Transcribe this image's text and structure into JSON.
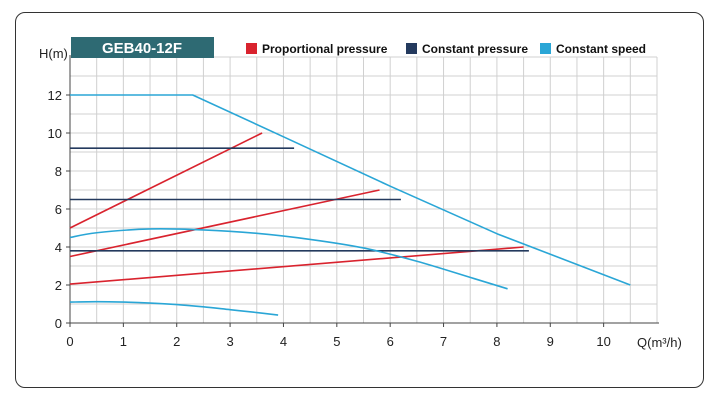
{
  "chart_data": {
    "type": "line",
    "title": "GEB40-12F",
    "xlabel": "Q(m³/h)",
    "ylabel": "H(m)",
    "xlim": [
      0,
      11
    ],
    "ylim": [
      0,
      14
    ],
    "x_ticks": [
      0,
      1,
      2,
      3,
      4,
      5,
      6,
      7,
      8,
      9,
      10
    ],
    "y_ticks": [
      0,
      2,
      4,
      6,
      8,
      10,
      12
    ],
    "grid": true,
    "legend": [
      {
        "name": "Proportional pressure",
        "color": "#d9232e"
      },
      {
        "name": "Constant pressure",
        "color": "#243a5e"
      },
      {
        "name": "Constant speed",
        "color": "#2aa6d6"
      }
    ],
    "series": [
      {
        "group": "Proportional pressure",
        "color": "#d9232e",
        "points": [
          [
            0,
            5.0
          ],
          [
            3.6,
            10.0
          ]
        ]
      },
      {
        "group": "Proportional pressure",
        "color": "#d9232e",
        "points": [
          [
            0,
            3.5
          ],
          [
            5.8,
            7.0
          ]
        ]
      },
      {
        "group": "Proportional pressure",
        "color": "#d9232e",
        "points": [
          [
            0,
            2.05
          ],
          [
            8.5,
            4.0
          ]
        ]
      },
      {
        "group": "Constant pressure",
        "color": "#243a5e",
        "points": [
          [
            0,
            9.2
          ],
          [
            4.2,
            9.2
          ]
        ]
      },
      {
        "group": "Constant pressure",
        "color": "#243a5e",
        "points": [
          [
            0,
            6.5
          ],
          [
            6.2,
            6.5
          ]
        ]
      },
      {
        "group": "Constant pressure",
        "color": "#243a5e",
        "points": [
          [
            0,
            3.8
          ],
          [
            8.6,
            3.8
          ]
        ]
      },
      {
        "group": "Constant speed",
        "color": "#2aa6d6",
        "points": [
          [
            0,
            12.0
          ],
          [
            2.3,
            12.0
          ],
          [
            4.0,
            9.8
          ],
          [
            6.0,
            7.2
          ],
          [
            8.0,
            4.7
          ],
          [
            10.5,
            2.0
          ]
        ]
      },
      {
        "group": "Constant speed",
        "color": "#2aa6d6",
        "points": [
          [
            0,
            4.5
          ],
          [
            0.5,
            4.75
          ],
          [
            1.5,
            4.95
          ],
          [
            2.5,
            4.9
          ],
          [
            3.5,
            4.72
          ],
          [
            4.5,
            4.4
          ],
          [
            5.5,
            3.95
          ],
          [
            6.5,
            3.25
          ],
          [
            7.5,
            2.4
          ],
          [
            8.2,
            1.8
          ]
        ]
      },
      {
        "group": "Constant speed",
        "color": "#2aa6d6",
        "points": [
          [
            0,
            1.1
          ],
          [
            0.5,
            1.12
          ],
          [
            1.0,
            1.1
          ],
          [
            1.5,
            1.05
          ],
          [
            2.0,
            0.97
          ],
          [
            2.5,
            0.85
          ],
          [
            3.0,
            0.7
          ],
          [
            3.5,
            0.55
          ],
          [
            3.9,
            0.42
          ]
        ]
      }
    ]
  }
}
